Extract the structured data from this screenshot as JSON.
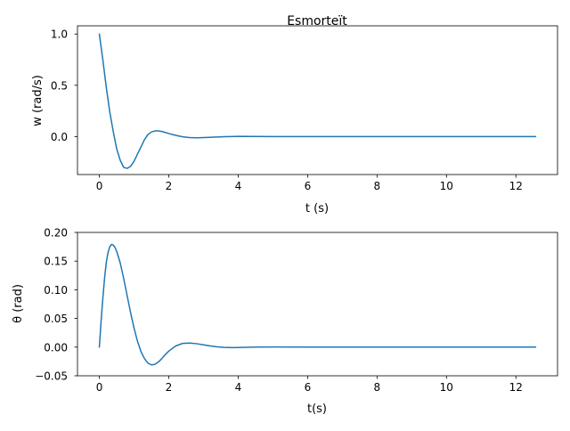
{
  "chart_data": [
    {
      "type": "line",
      "title": "Esmorteït",
      "xlabel": "t (s)",
      "ylabel": "w (rad/s)",
      "xlim": [
        -0.63,
        13.2
      ],
      "ylim": [
        -0.37,
        1.08
      ],
      "xticks": [
        0,
        2,
        4,
        6,
        8,
        10,
        12
      ],
      "xtick_labels": [
        "0",
        "2",
        "4",
        "6",
        "8",
        "10",
        "12"
      ],
      "yticks": [
        0.0,
        0.5,
        1.0
      ],
      "ytick_labels": [
        "0.0",
        "0.5",
        "1.0"
      ],
      "grid": false,
      "series": [
        {
          "color": "#1f77b4",
          "x": [
            0,
            0.1,
            0.2,
            0.3,
            0.4,
            0.5,
            0.6,
            0.7,
            0.8,
            0.9,
            1.0,
            1.1,
            1.2,
            1.3,
            1.4,
            1.5,
            1.6,
            1.7,
            1.8,
            1.9,
            2.0,
            2.2,
            2.4,
            2.6,
            2.8,
            3.0,
            3.3,
            3.6,
            4.0,
            4.5,
            5.0,
            6.0,
            8.0,
            10.0,
            12.57
          ],
          "y": [
            1.0,
            0.75,
            0.48,
            0.24,
            0.05,
            -0.12,
            -0.23,
            -0.3,
            -0.31,
            -0.29,
            -0.24,
            -0.17,
            -0.1,
            -0.03,
            0.02,
            0.045,
            0.055,
            0.055,
            0.05,
            0.04,
            0.03,
            0.012,
            -0.002,
            -0.01,
            -0.012,
            -0.01,
            -0.005,
            -0.001,
            0.002,
            0.001,
            0.0,
            0.0,
            0.0,
            0.0,
            0.0
          ]
        }
      ]
    },
    {
      "type": "line",
      "title": "",
      "xlabel": "t(s)",
      "ylabel": "θ (rad)",
      "xlim": [
        -0.63,
        13.2
      ],
      "ylim": [
        -0.05,
        0.2
      ],
      "xticks": [
        0,
        2,
        4,
        6,
        8,
        10,
        12
      ],
      "xtick_labels": [
        "0",
        "2",
        "4",
        "6",
        "8",
        "10",
        "12"
      ],
      "yticks": [
        -0.05,
        0.0,
        0.05,
        0.1,
        0.15,
        0.2
      ],
      "ytick_labels": [
        "−0.05",
        "0.00",
        "0.05",
        "0.10",
        "0.15",
        "0.20"
      ],
      "grid": false,
      "series": [
        {
          "color": "#1f77b4",
          "x": [
            0,
            0.05,
            0.1,
            0.15,
            0.2,
            0.25,
            0.3,
            0.35,
            0.4,
            0.45,
            0.5,
            0.6,
            0.7,
            0.8,
            0.9,
            1.0,
            1.1,
            1.2,
            1.3,
            1.4,
            1.5,
            1.6,
            1.7,
            1.8,
            1.9,
            2.0,
            2.2,
            2.4,
            2.6,
            2.8,
            3.0,
            3.2,
            3.4,
            3.6,
            3.8,
            4.0,
            4.5,
            5.0,
            6.0,
            8.0,
            10.0,
            12.57
          ],
          "y": [
            0.0,
            0.045,
            0.085,
            0.12,
            0.148,
            0.165,
            0.175,
            0.179,
            0.178,
            0.174,
            0.167,
            0.147,
            0.12,
            0.09,
            0.06,
            0.033,
            0.01,
            -0.008,
            -0.02,
            -0.028,
            -0.031,
            -0.03,
            -0.026,
            -0.02,
            -0.013,
            -0.007,
            0.002,
            0.0065,
            0.007,
            0.006,
            0.004,
            0.002,
            0.0005,
            -0.0005,
            -0.0008,
            -0.0006,
            0.0,
            0.0002,
            0.0,
            0.0,
            0.0,
            0.0
          ]
        }
      ]
    }
  ]
}
